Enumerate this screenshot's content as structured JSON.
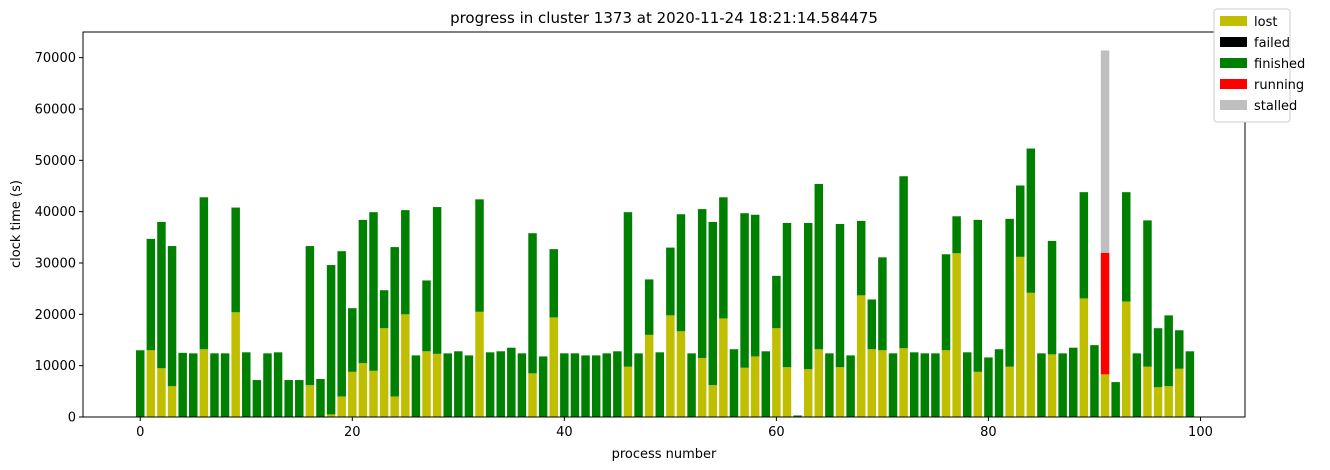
{
  "chart_data": {
    "type": "stacked_bar",
    "title": "progress in cluster 1373 at 2020-11-24 18:21:14.584475",
    "xlabel": "process number",
    "ylabel": "clock time (s)",
    "x": [
      0,
      1,
      2,
      3,
      4,
      5,
      6,
      7,
      8,
      9,
      10,
      11,
      12,
      13,
      14,
      15,
      16,
      17,
      18,
      19,
      20,
      21,
      22,
      23,
      24,
      25,
      26,
      27,
      28,
      29,
      30,
      31,
      32,
      33,
      34,
      35,
      36,
      37,
      38,
      39,
      40,
      41,
      42,
      43,
      44,
      45,
      46,
      47,
      48,
      49,
      50,
      51,
      52,
      53,
      54,
      55,
      56,
      57,
      58,
      59,
      60,
      61,
      62,
      63,
      64,
      65,
      66,
      67,
      68,
      69,
      70,
      71,
      72,
      73,
      74,
      75,
      76,
      77,
      78,
      79,
      80,
      81,
      82,
      83,
      84,
      85,
      86,
      87,
      88,
      89,
      90,
      91,
      92,
      93,
      94,
      95,
      96,
      97,
      98,
      99
    ],
    "series": [
      {
        "name": "lost",
        "color": "#bfbf00",
        "values": [
          0,
          13000,
          9500,
          6000,
          0,
          0,
          13200,
          0,
          0,
          20400,
          0,
          0,
          0,
          0,
          0,
          0,
          6200,
          0,
          500,
          4000,
          8800,
          10500,
          9000,
          17300,
          4000,
          20000,
          0,
          12800,
          12300,
          0,
          0,
          0,
          20500,
          0,
          0,
          0,
          0,
          8500,
          0,
          19400,
          0,
          0,
          0,
          0,
          0,
          0,
          9800,
          0,
          16000,
          0,
          19800,
          16700,
          0,
          11500,
          6200,
          19200,
          0,
          9600,
          11800,
          0,
          17300,
          9700,
          0,
          9300,
          13200,
          0,
          9700,
          0,
          23700,
          13200,
          13000,
          0,
          13400,
          0,
          0,
          0,
          13000,
          31900,
          0,
          8800,
          0,
          0,
          9800,
          31200,
          24200,
          0,
          12200,
          0,
          0,
          23100,
          0,
          8300,
          0,
          22500,
          0,
          9800,
          5800,
          6000,
          9400,
          0
        ]
      },
      {
        "name": "failed",
        "color": "#000000",
        "values": [
          0,
          0,
          0,
          0,
          0,
          0,
          0,
          0,
          0,
          0,
          0,
          0,
          0,
          0,
          0,
          0,
          0,
          0,
          0,
          0,
          0,
          0,
          0,
          0,
          0,
          0,
          0,
          0,
          0,
          0,
          0,
          0,
          0,
          0,
          0,
          0,
          0,
          0,
          0,
          0,
          0,
          0,
          0,
          0,
          0,
          0,
          0,
          0,
          0,
          0,
          0,
          0,
          0,
          0,
          0,
          0,
          0,
          0,
          0,
          0,
          0,
          0,
          0,
          0,
          0,
          0,
          0,
          0,
          0,
          0,
          0,
          0,
          0,
          0,
          0,
          0,
          0,
          0,
          0,
          0,
          0,
          0,
          0,
          0,
          0,
          0,
          0,
          0,
          0,
          0,
          0,
          0,
          0,
          0,
          0,
          0,
          0,
          0,
          0,
          0
        ]
      },
      {
        "name": "finished",
        "color": "#008000",
        "values": [
          13000,
          21700,
          28500,
          27300,
          12500,
          12400,
          29600,
          12400,
          12400,
          20400,
          12600,
          7200,
          12400,
          12600,
          7200,
          7200,
          27100,
          7400,
          29100,
          28300,
          12400,
          27900,
          30900,
          7400,
          29100,
          20300,
          12000,
          13800,
          28600,
          12400,
          12800,
          12000,
          21900,
          12600,
          12800,
          13500,
          12400,
          27300,
          11800,
          13300,
          12400,
          12400,
          12000,
          12000,
          12400,
          12800,
          30100,
          12400,
          10800,
          12600,
          13200,
          22800,
          12400,
          29000,
          31800,
          23600,
          13200,
          30100,
          27600,
          12800,
          10200,
          28100,
          300,
          28500,
          32200,
          12400,
          27900,
          12000,
          14500,
          9700,
          18100,
          12400,
          33500,
          12600,
          12400,
          12400,
          18700,
          7200,
          12600,
          29600,
          11600,
          13200,
          28800,
          13900,
          28100,
          12400,
          22100,
          12400,
          13500,
          20700,
          14000,
          0,
          6800,
          21300,
          12400,
          28500,
          11500,
          13800,
          7500,
          12800
        ]
      },
      {
        "name": "running",
        "color": "#ff0000",
        "values": [
          0,
          0,
          0,
          0,
          0,
          0,
          0,
          0,
          0,
          0,
          0,
          0,
          0,
          0,
          0,
          0,
          0,
          0,
          0,
          0,
          0,
          0,
          0,
          0,
          0,
          0,
          0,
          0,
          0,
          0,
          0,
          0,
          0,
          0,
          0,
          0,
          0,
          0,
          0,
          0,
          0,
          0,
          0,
          0,
          0,
          0,
          0,
          0,
          0,
          0,
          0,
          0,
          0,
          0,
          0,
          0,
          0,
          0,
          0,
          0,
          0,
          0,
          0,
          0,
          0,
          0,
          0,
          0,
          0,
          0,
          0,
          0,
          0,
          0,
          0,
          0,
          0,
          0,
          0,
          0,
          0,
          0,
          0,
          0,
          0,
          0,
          0,
          0,
          0,
          0,
          0,
          23700,
          0,
          0,
          0,
          0,
          0,
          0,
          0,
          0
        ]
      },
      {
        "name": "stalled",
        "color": "#bfbfbf",
        "values": [
          0,
          0,
          0,
          0,
          0,
          0,
          0,
          0,
          0,
          0,
          0,
          0,
          0,
          0,
          0,
          0,
          0,
          0,
          0,
          0,
          0,
          0,
          0,
          0,
          0,
          0,
          0,
          0,
          0,
          0,
          0,
          0,
          0,
          0,
          0,
          0,
          0,
          0,
          0,
          0,
          0,
          0,
          0,
          0,
          0,
          0,
          0,
          0,
          0,
          0,
          0,
          0,
          0,
          0,
          0,
          0,
          0,
          0,
          0,
          0,
          0,
          0,
          0,
          0,
          0,
          0,
          0,
          0,
          0,
          0,
          0,
          0,
          0,
          0,
          0,
          0,
          0,
          0,
          0,
          0,
          0,
          0,
          0,
          0,
          0,
          0,
          0,
          0,
          0,
          0,
          0,
          39400,
          0,
          0,
          0,
          0,
          0,
          0,
          0,
          0
        ]
      }
    ],
    "xlim": [
      -5.4,
      104.2
    ],
    "xticks": [
      0,
      20,
      40,
      60,
      80,
      100
    ],
    "ylim": [
      0,
      75000
    ],
    "yticks": [
      0,
      10000,
      20000,
      30000,
      40000,
      50000,
      60000,
      70000
    ],
    "legend": "upper right"
  }
}
